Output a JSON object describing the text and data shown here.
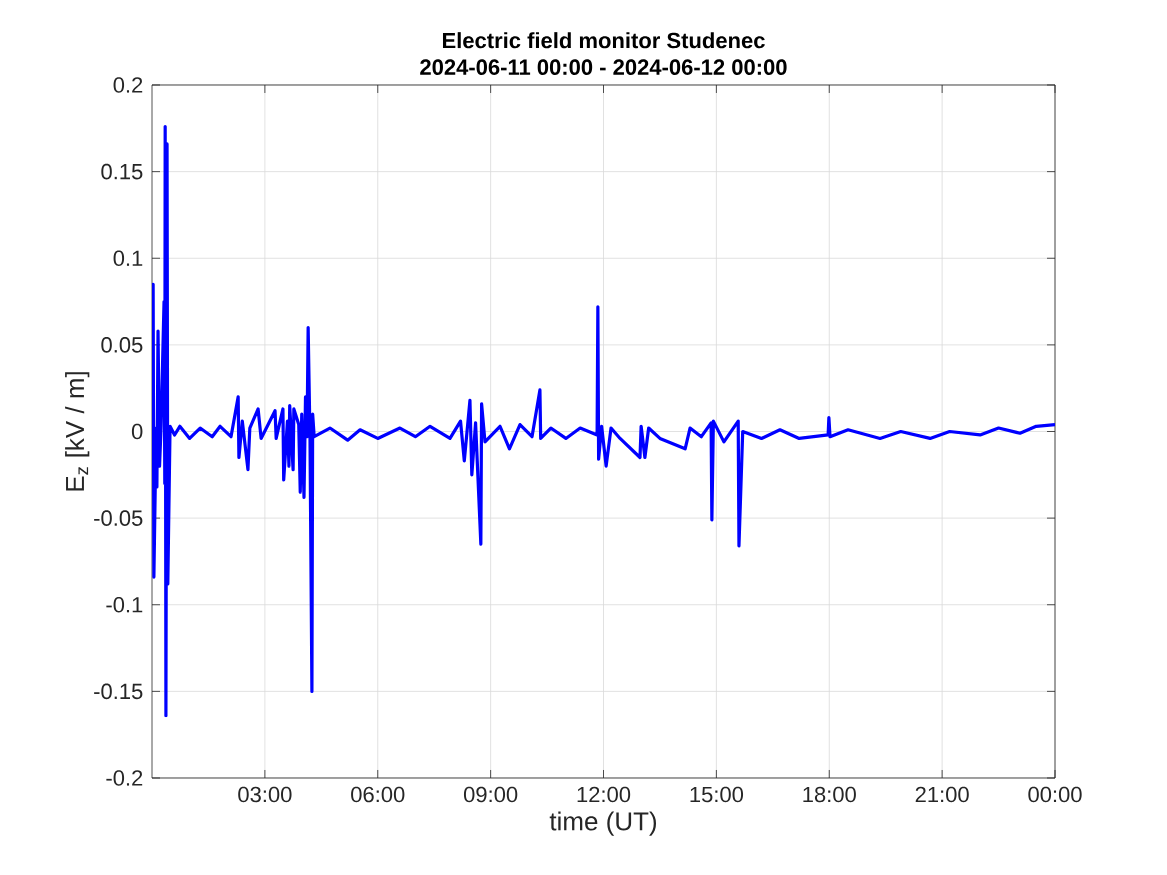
{
  "chart_data": {
    "type": "line",
    "title": "Electric field monitor Studenec",
    "subtitle": "2024-06-11 00:00 - 2024-06-12 00:00",
    "xlabel": "time (UT)",
    "ylabel": "E$_{z}$ [kV / m]",
    "xlim": [
      0,
      24
    ],
    "xticks": [
      {
        "value": 3,
        "label": "03:00"
      },
      {
        "value": 6,
        "label": "06:00"
      },
      {
        "value": 9,
        "label": "09:00"
      },
      {
        "value": 12,
        "label": "12:00"
      },
      {
        "value": 15,
        "label": "15:00"
      },
      {
        "value": 18,
        "label": "18:00"
      },
      {
        "value": 21,
        "label": "21:00"
      },
      {
        "value": 24,
        "label": "00:00"
      }
    ],
    "ylim": [
      -0.2,
      0.2
    ],
    "yticks": [
      -0.2,
      -0.15,
      -0.1,
      -0.05,
      0,
      0.05,
      0.1,
      0.15,
      0.2
    ],
    "grid": true,
    "legend": false,
    "marker": "none",
    "line_style": "solid",
    "series": [
      {
        "color": "#0000ff",
        "x": [
          0,
          0.03,
          0.05,
          0.11,
          0.13,
          0.16,
          0.2,
          0.24,
          0.32,
          0.34,
          0.35,
          0.37,
          0.4,
          0.42,
          0.48,
          0.6,
          0.74,
          1.0,
          1.28,
          1.6,
          1.81,
          2.1,
          2.29,
          2.31,
          2.4,
          2.55,
          2.6,
          2.82,
          2.9,
          3.27,
          3.3,
          3.48,
          3.5,
          3.6,
          3.64,
          3.66,
          3.75,
          3.77,
          3.9,
          3.94,
          3.98,
          4.04,
          4.08,
          4.12,
          4.15,
          4.2,
          4.25,
          4.27,
          4.31,
          4.73,
          5.2,
          5.53,
          6.0,
          6.59,
          7.0,
          7.39,
          7.92,
          8.2,
          8.3,
          8.45,
          8.5,
          8.6,
          8.74,
          8.76,
          8.85,
          9.25,
          9.5,
          9.78,
          10.1,
          10.31,
          10.33,
          10.6,
          11.0,
          11.38,
          11.83,
          11.85,
          11.87,
          11.95,
          12.07,
          12.2,
          12.44,
          12.97,
          13.0,
          13.1,
          13.2,
          13.5,
          14.17,
          14.3,
          14.6,
          14.86,
          14.88,
          14.92,
          15.2,
          15.58,
          15.6,
          15.7,
          16.2,
          16.69,
          17.2,
          17.97,
          17.99,
          18.02,
          18.5,
          19.35,
          19.9,
          20.68,
          21.2,
          22.01,
          22.5,
          23.07,
          23.5,
          24
        ],
        "values": [
          -0.005,
          0.085,
          -0.084,
          0.002,
          -0.032,
          0.058,
          -0.02,
          0.002,
          0.075,
          -0.03,
          0.176,
          -0.164,
          0.166,
          -0.088,
          0.003,
          -0.002,
          0.003,
          -0.004,
          0.002,
          -0.003,
          0.003,
          -0.003,
          0.02,
          -0.015,
          0.006,
          -0.022,
          0.002,
          0.013,
          -0.004,
          0.012,
          -0.004,
          0.013,
          -0.028,
          0.006,
          -0.02,
          0.015,
          -0.022,
          0.013,
          0.004,
          -0.035,
          0.01,
          -0.038,
          0.02,
          -0.003,
          0.06,
          -0.005,
          -0.15,
          0.01,
          -0.003,
          0.002,
          -0.005,
          0.001,
          -0.004,
          0.002,
          -0.003,
          0.003,
          -0.004,
          0.006,
          -0.017,
          0.018,
          -0.025,
          0.005,
          -0.065,
          0.016,
          -0.006,
          0.003,
          -0.01,
          0.004,
          -0.003,
          0.024,
          -0.004,
          0.002,
          -0.004,
          0.002,
          -0.002,
          0.072,
          -0.016,
          0.003,
          -0.02,
          0.002,
          -0.004,
          -0.015,
          0.003,
          -0.015,
          0.002,
          -0.004,
          -0.01,
          0.002,
          -0.003,
          0.005,
          -0.051,
          0.006,
          -0.006,
          0.006,
          -0.066,
          0.0,
          -0.004,
          0.001,
          -0.004,
          -0.002,
          0.008,
          -0.003,
          0.001,
          -0.004,
          0.0,
          -0.004,
          0.0,
          -0.002,
          0.002,
          -0.001,
          0.003,
          0.004
        ]
      }
    ]
  }
}
